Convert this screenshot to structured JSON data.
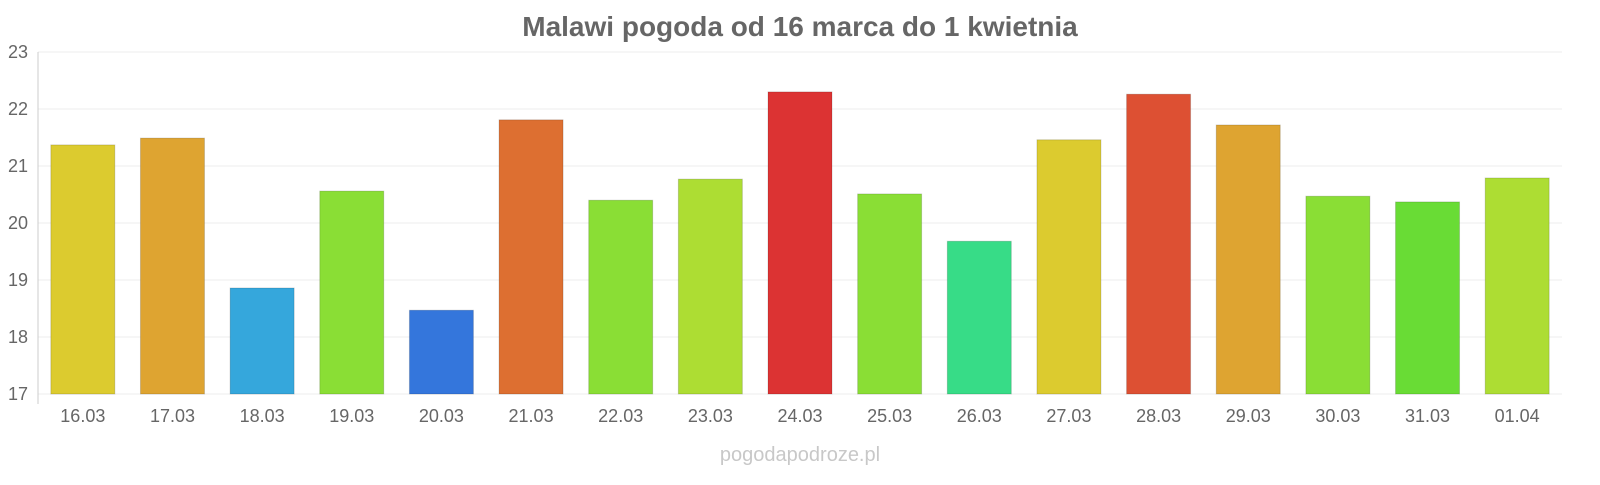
{
  "chart_data": {
    "type": "bar",
    "title": "Malawi pogoda od 16 marca do 1 kwietnia",
    "xlabel": "",
    "ylabel": "",
    "ylim": [
      17,
      23
    ],
    "yticks": [
      "17",
      "18",
      "19",
      "20",
      "21",
      "22",
      "23"
    ],
    "grid": true,
    "categories": [
      "16.03",
      "17.03",
      "18.03",
      "19.03",
      "20.03",
      "21.03",
      "22.03",
      "23.03",
      "24.03",
      "25.03",
      "26.03",
      "27.03",
      "28.03",
      "29.03",
      "30.03",
      "31.03",
      "01.04"
    ],
    "values": [
      21.37,
      21.49,
      18.86,
      20.56,
      18.47,
      21.81,
      20.4,
      20.77,
      22.3,
      20.51,
      19.68,
      21.46,
      22.26,
      21.72,
      20.47,
      20.37,
      20.79
    ],
    "colors": [
      "#dccb2f",
      "#dea431",
      "#35a7dc",
      "#8ade35",
      "#3476dc",
      "#dd6f31",
      "#8ade35",
      "#addd33",
      "#dc3333",
      "#8ade35",
      "#37dc87",
      "#dccb2f",
      "#dd5033",
      "#dea431",
      "#8ade35",
      "#69dc35",
      "#addd33"
    ]
  },
  "footer": {
    "watermark": "pogodapodroze.pl"
  }
}
